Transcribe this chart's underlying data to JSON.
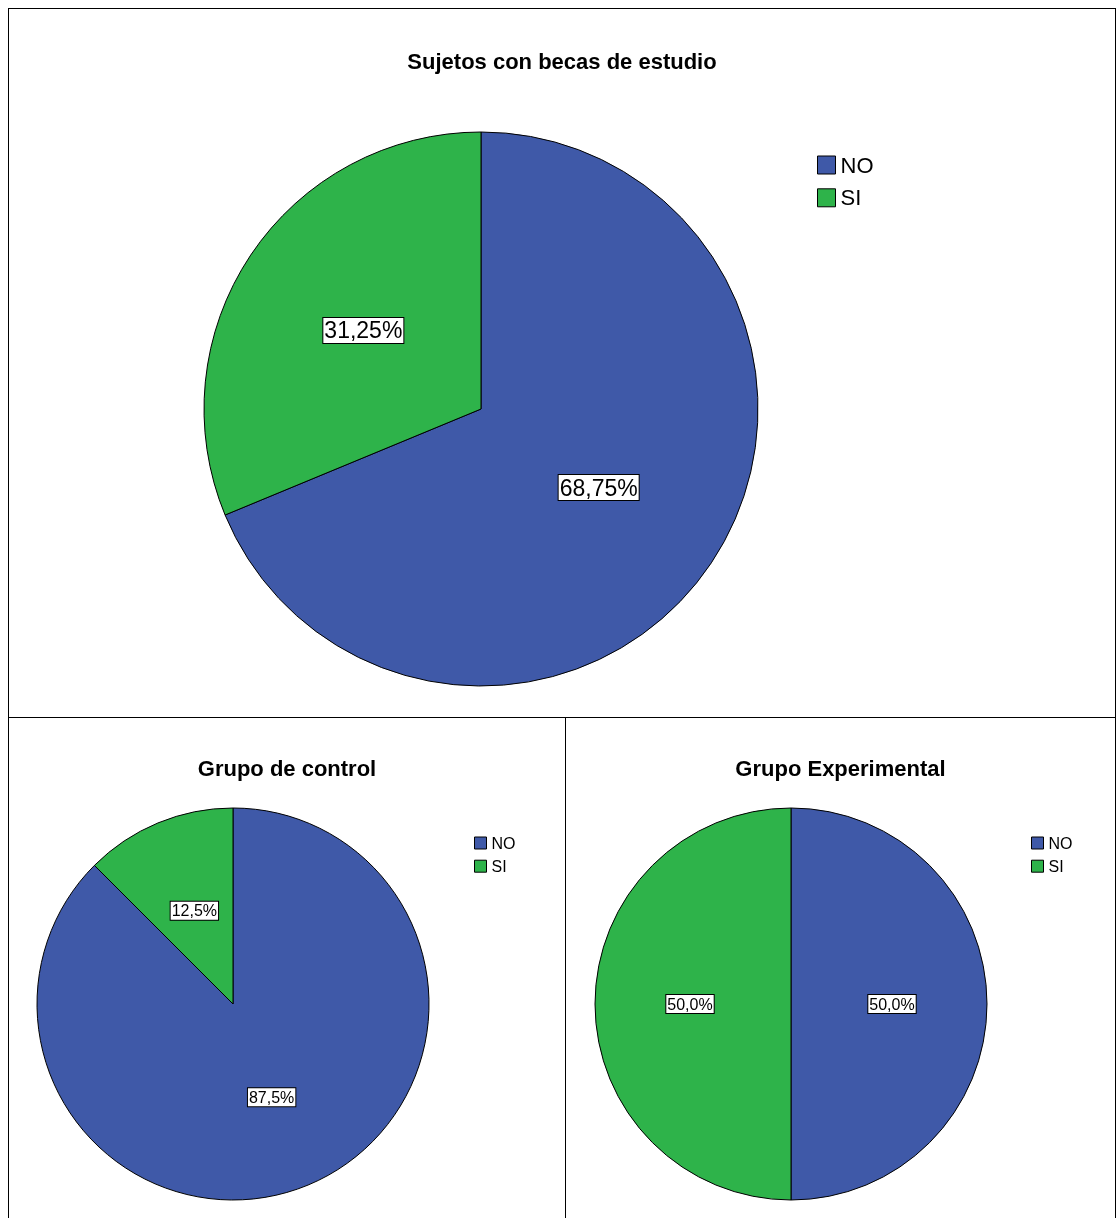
{
  "chart_data": [
    {
      "type": "pie",
      "title": "Sujetos con becas de estudio",
      "categories": [
        "NO",
        "SI"
      ],
      "values": [
        68.75,
        31.25
      ],
      "colors": [
        "#3f59a8",
        "#2eb34a"
      ],
      "value_labels": [
        "68,75%",
        "31,25%"
      ],
      "legend": "top right"
    },
    {
      "type": "pie",
      "title": "Grupo de control",
      "categories": [
        "NO",
        "SI"
      ],
      "values": [
        87.5,
        12.5
      ],
      "colors": [
        "#3f59a8",
        "#2eb34a"
      ],
      "value_labels": [
        "87,5%",
        "12,5%"
      ],
      "legend": "top right"
    },
    {
      "type": "pie",
      "title": "Grupo Experimental",
      "categories": [
        "NO",
        "SI"
      ],
      "values": [
        50.0,
        50.0
      ],
      "colors": [
        "#3f59a8",
        "#2eb34a"
      ],
      "value_labels": [
        "50,0%",
        "50,0%"
      ],
      "legend": "top right"
    }
  ]
}
